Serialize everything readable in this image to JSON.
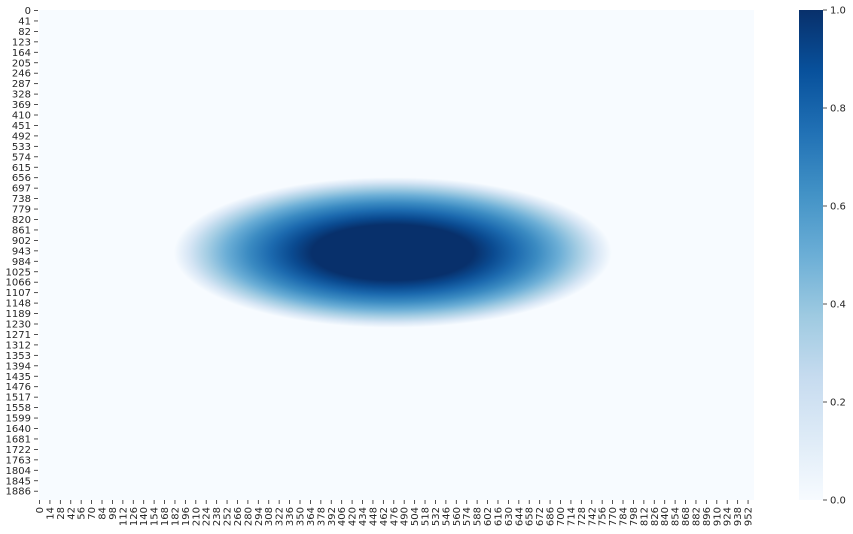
{
  "chart_data": {
    "type": "heatmap",
    "title": "",
    "xlabel": "",
    "ylabel": "",
    "x_tick_labels": [
      "0",
      "14",
      "28",
      "42",
      "56",
      "70",
      "84",
      "98",
      "112",
      "126",
      "140",
      "154",
      "168",
      "182",
      "196",
      "210",
      "224",
      "238",
      "252",
      "266",
      "280",
      "294",
      "308",
      "322",
      "336",
      "350",
      "364",
      "378",
      "392",
      "406",
      "420",
      "434",
      "448",
      "462",
      "476",
      "490",
      "504",
      "518",
      "532",
      "546",
      "560",
      "574",
      "588",
      "602",
      "616",
      "630",
      "644",
      "658",
      "672",
      "686",
      "700",
      "714",
      "728",
      "742",
      "756",
      "770",
      "784",
      "798",
      "812",
      "826",
      "840",
      "854",
      "868",
      "882",
      "896",
      "910",
      "924",
      "938",
      "952"
    ],
    "y_tick_labels": [
      "0",
      "41",
      "82",
      "123",
      "164",
      "205",
      "246",
      "287",
      "328",
      "369",
      "410",
      "451",
      "492",
      "533",
      "574",
      "615",
      "656",
      "697",
      "738",
      "779",
      "820",
      "861",
      "902",
      "943",
      "984",
      "1025",
      "1066",
      "1107",
      "1148",
      "1189",
      "1230",
      "1271",
      "1312",
      "1353",
      "1394",
      "1435",
      "1476",
      "1517",
      "1558",
      "1599",
      "1640",
      "1681",
      "1722",
      "1763",
      "1804",
      "1845",
      "1886"
    ],
    "x_range": [
      0,
      960
    ],
    "y_range": [
      0,
      1920
    ],
    "colormap": "Blues",
    "vmin": 0.0,
    "vmax": 1.0,
    "colorbar_ticks": [
      "0.0",
      "0.2",
      "0.4",
      "0.6",
      "0.8",
      "1.0"
    ],
    "colorbar_tick_values": [
      0.0,
      0.2,
      0.4,
      0.6,
      0.8,
      1.0
    ],
    "blob": {
      "center_x": 475,
      "center_y": 950,
      "outer_semi_axis_x": 294,
      "outer_semi_axis_y": 295,
      "saturated_semi_axis_x": 109,
      "saturated_semi_axis_y": 118,
      "peak_value": 1.0
    }
  }
}
